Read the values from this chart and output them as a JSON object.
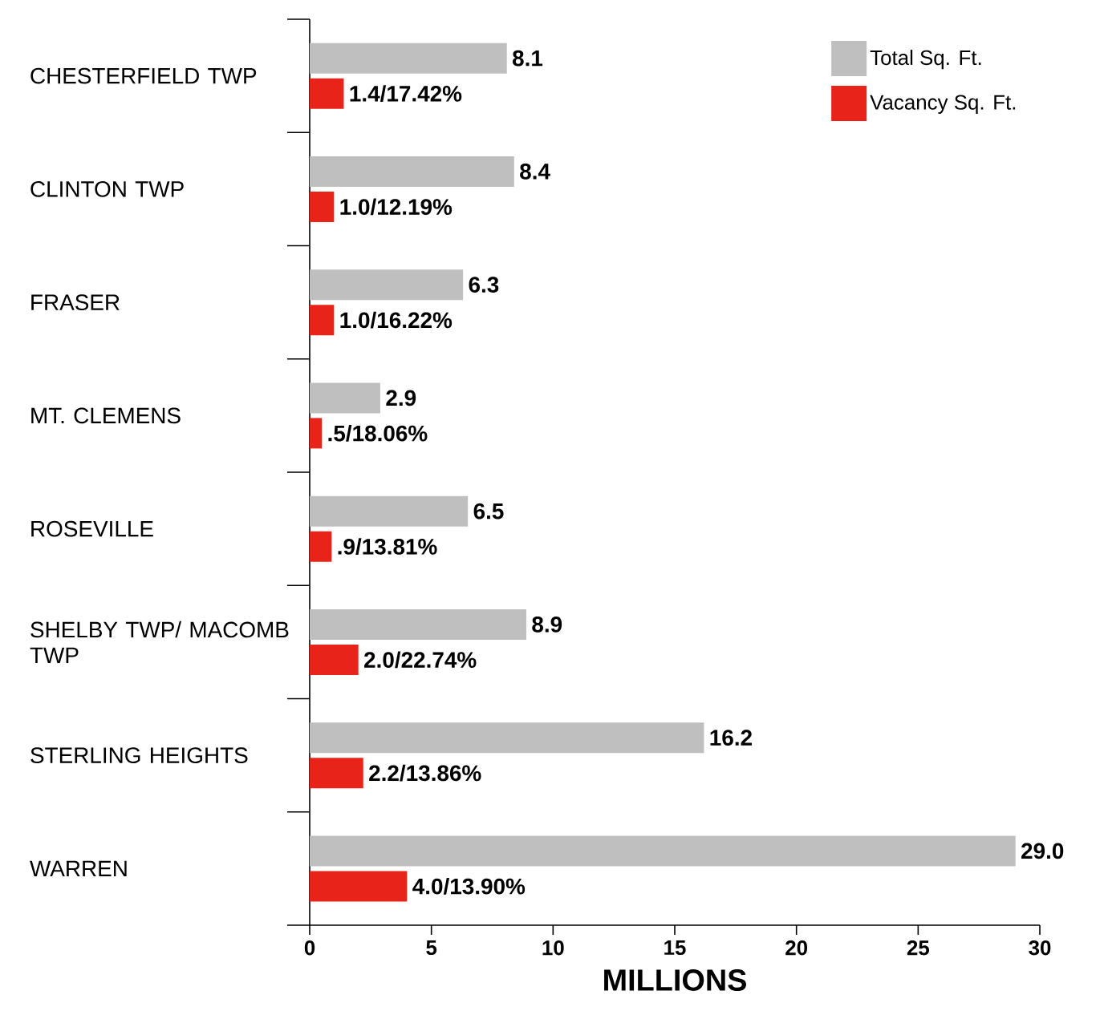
{
  "chart_data": {
    "type": "bar",
    "orientation": "horizontal",
    "xlabel": "MILLIONS",
    "categories": [
      "CHESTERFIELD TWP",
      "CLINTON TWP",
      "FRASER",
      "MT. CLEMENS",
      "ROSEVILLE",
      "SHELBY TWP/ MACOMB TWP",
      "STERLING HEIGHTS",
      "WARREN"
    ],
    "series": [
      {
        "name": "Total Sq. Ft.",
        "color": "#bfbfbf",
        "values": [
          8.1,
          8.4,
          6.3,
          2.9,
          6.5,
          8.9,
          16.2,
          29.0
        ],
        "value_labels": [
          "8.1",
          "8.4",
          "6.3",
          "2.9",
          "6.5",
          "8.9",
          "16.2",
          "29.0"
        ]
      },
      {
        "name": "Vacancy Sq. Ft.",
        "color": "#e8241a",
        "values": [
          1.4,
          1.0,
          1.0,
          0.5,
          0.9,
          2.0,
          2.2,
          4.0
        ],
        "value_labels": [
          "1.4/17.42%",
          "1.0/12.19%",
          "1.0/16.22%",
          ".5/18.06%",
          ".9/13.81%",
          "2.0/22.74%",
          "2.2/13.86%",
          "4.0/13.90%"
        ]
      }
    ],
    "xlim": [
      0,
      30
    ],
    "xticks": [
      0,
      5,
      10,
      15,
      20,
      25,
      30
    ],
    "legend": "top right",
    "grid": false
  }
}
